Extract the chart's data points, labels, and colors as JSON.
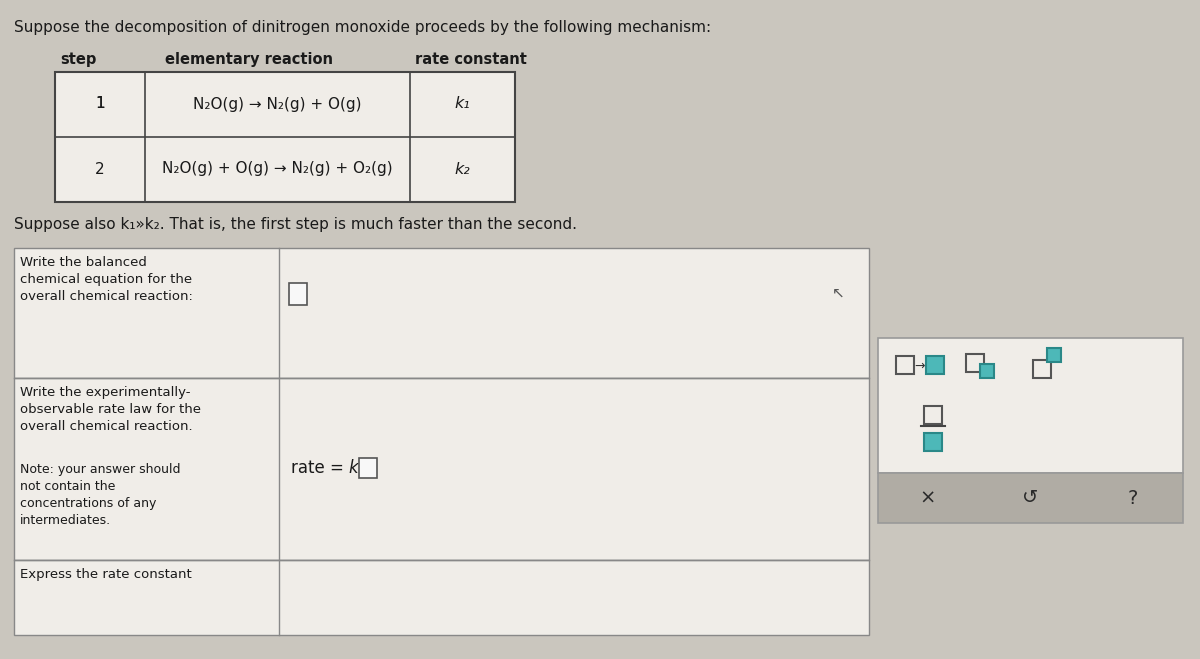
{
  "bg_color": "#cac6be",
  "content_bg": "#d4d0c8",
  "white_cell": "#f0ede8",
  "table_bg": "#e8e4dc",
  "font_color": "#1a1a1a",
  "title_text": "Suppose the decomposition of dinitrogen monoxide proceeds by the following mechanism:",
  "col_headers": [
    "step",
    "elementary reaction",
    "rate constant"
  ],
  "row1_step": "1",
  "row1_rxn": "N₂O(g) → N₂(g) + O(g)",
  "row1_k": "k₁",
  "row2_step": "2",
  "row2_rxn": "N₂O(g) + O(g) → N₂(g) + O₂(g)",
  "row2_k": "k₂",
  "suppose_text": "Suppose also k₁»k₂. That is, the first step is much faster than the second.",
  "q1_label": "Write the balanced\nchemical equation for the\noverall chemical reaction:",
  "q2_label": "Write the experimentally-\nobservable rate law for the\noverall chemical reaction.",
  "q2_note": "Note: your answer should\nnot contain the\nconcentrations of any\nintermediates.",
  "q3_label": "Express the rate constant",
  "teal_color": "#4db8b8",
  "sidebar_white": "#f0ede8",
  "sidebar_gray": "#b8b4ac",
  "sidebar_border": "#999999"
}
